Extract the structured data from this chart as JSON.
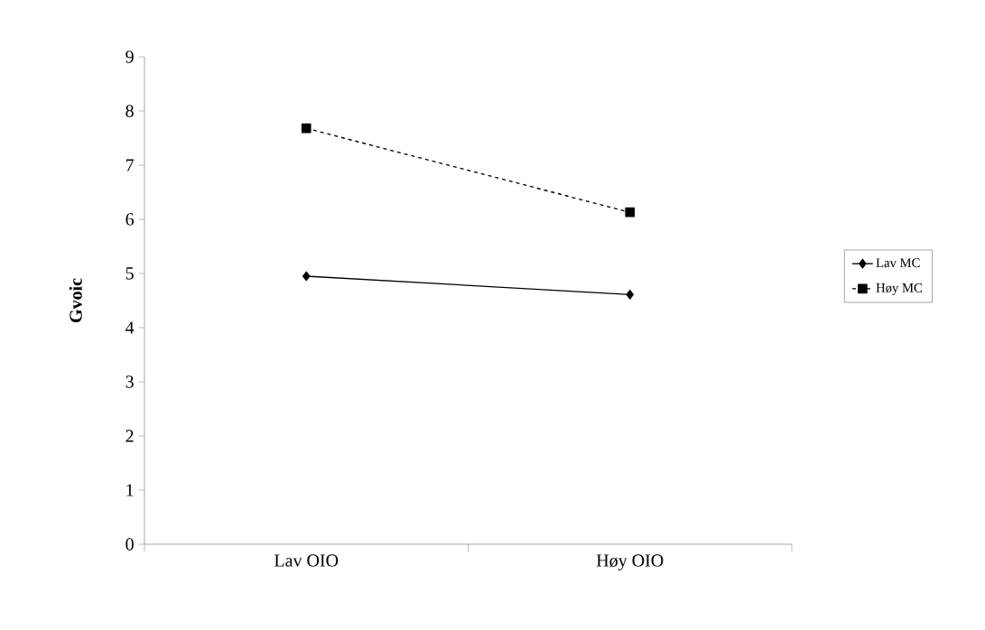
{
  "chart_data": {
    "type": "line",
    "ylabel": "Gvoic",
    "categories": [
      "Lav OIO",
      "Høy OIO"
    ],
    "series": [
      {
        "name": "Lav MC",
        "color": "#000000",
        "values": [
          4.95,
          4.61
        ],
        "marker": "diamond",
        "line_style": "solid"
      },
      {
        "name": "Høy MC",
        "color": "#000000",
        "values": [
          7.68,
          6.13
        ],
        "marker": "square",
        "line_style": "dashed"
      }
    ],
    "ylim": [
      0,
      9
    ],
    "yticks": [
      0,
      1,
      2,
      3,
      4,
      5,
      6,
      7,
      8,
      9
    ],
    "legend": "right"
  }
}
